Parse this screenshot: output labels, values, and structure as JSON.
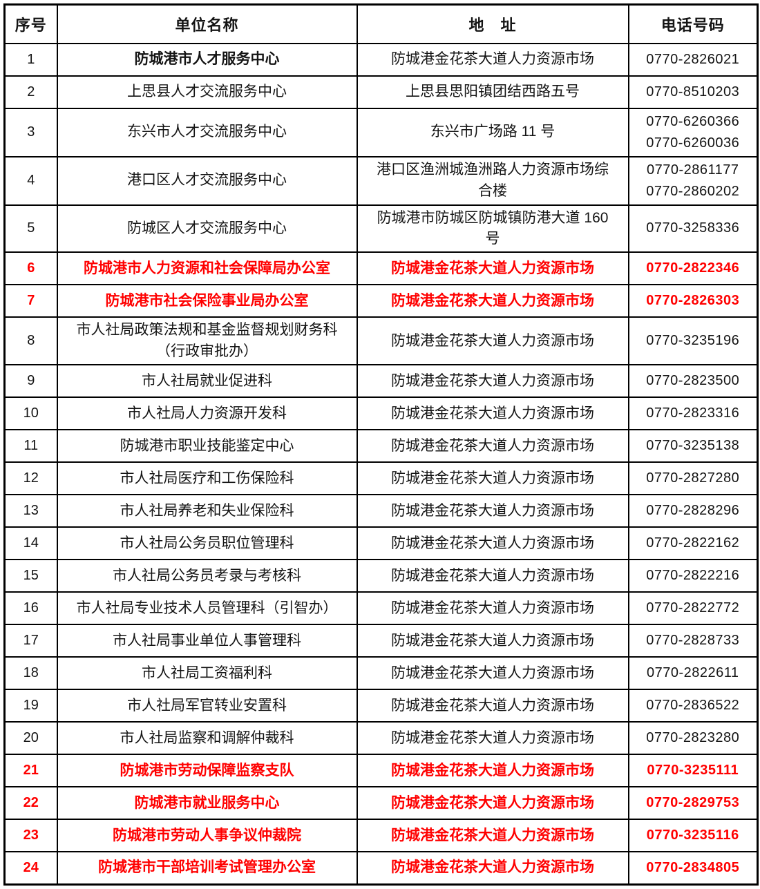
{
  "colors": {
    "highlight": "#FF0000",
    "text": "#141414",
    "border": "#000000"
  },
  "table": {
    "headers": [
      "序号",
      "单位名称",
      "地　址",
      "电话号码"
    ],
    "rows": [
      {
        "no": "1",
        "name": "防城港市人才服务中心",
        "name_bold": true,
        "address": "防城港金花茶大道人力资源市场",
        "phones": [
          "0770-2826021"
        ],
        "highlight": false
      },
      {
        "no": "2",
        "name": "上思县人才交流服务中心",
        "name_bold": false,
        "address": "上思县思阳镇团结西路五号",
        "phones": [
          "0770-8510203"
        ],
        "highlight": false
      },
      {
        "no": "3",
        "name": "东兴市人才交流服务中心",
        "name_bold": false,
        "address": "东兴市广场路 11 号",
        "phones": [
          "0770-6260366",
          "0770-6260036"
        ],
        "highlight": false
      },
      {
        "no": "4",
        "name": "港口区人才交流服务中心",
        "name_bold": false,
        "address": "港口区渔洲城渔洲路人力资源市场综\n合楼",
        "phones": [
          "0770-2861177",
          "0770-2860202"
        ],
        "highlight": false
      },
      {
        "no": "5",
        "name": "防城区人才交流服务中心",
        "name_bold": false,
        "address": "防城港市防城区防城镇防港大道 160\n号",
        "phones": [
          "0770-3258336"
        ],
        "highlight": false
      },
      {
        "no": "6",
        "name": "防城港市人力资源和社会保障局办公室",
        "name_bold": false,
        "address": "防城港金花茶大道人力资源市场",
        "phones": [
          "0770-2822346"
        ],
        "highlight": true
      },
      {
        "no": "7",
        "name": "防城港市社会保险事业局办公室",
        "name_bold": false,
        "address": "防城港金花茶大道人力资源市场",
        "phones": [
          "0770-2826303"
        ],
        "highlight": true
      },
      {
        "no": "8",
        "name": "市人社局政策法规和基金监督规划财务科\n（行政审批办）",
        "name_bold": false,
        "address": "防城港金花茶大道人力资源市场",
        "phones": [
          "0770-3235196"
        ],
        "highlight": false
      },
      {
        "no": "9",
        "name": "市人社局就业促进科",
        "name_bold": false,
        "address": "防城港金花茶大道人力资源市场",
        "phones": [
          "0770-2823500"
        ],
        "highlight": false
      },
      {
        "no": "10",
        "name": "市人社局人力资源开发科",
        "name_bold": false,
        "address": "防城港金花茶大道人力资源市场",
        "phones": [
          "0770-2823316"
        ],
        "highlight": false
      },
      {
        "no": "11",
        "name": "防城港市职业技能鉴定中心",
        "name_bold": false,
        "address": "防城港金花茶大道人力资源市场",
        "phones": [
          "0770-3235138"
        ],
        "highlight": false
      },
      {
        "no": "12",
        "name": "市人社局医疗和工伤保险科",
        "name_bold": false,
        "address": "防城港金花茶大道人力资源市场",
        "phones": [
          "0770-2827280"
        ],
        "highlight": false
      },
      {
        "no": "13",
        "name": "市人社局养老和失业保险科",
        "name_bold": false,
        "address": "防城港金花茶大道人力资源市场",
        "phones": [
          "0770-2828296"
        ],
        "highlight": false
      },
      {
        "no": "14",
        "name": "市人社局公务员职位管理科",
        "name_bold": false,
        "address": "防城港金花茶大道人力资源市场",
        "phones": [
          "0770-2822162"
        ],
        "highlight": false
      },
      {
        "no": "15",
        "name": "市人社局公务员考录与考核科",
        "name_bold": false,
        "address": "防城港金花茶大道人力资源市场",
        "phones": [
          "0770-2822216"
        ],
        "highlight": false
      },
      {
        "no": "16",
        "name": "市人社局专业技术人员管理科（引智办）",
        "name_bold": false,
        "address": "防城港金花茶大道人力资源市场",
        "phones": [
          "0770-2822772"
        ],
        "highlight": false
      },
      {
        "no": "17",
        "name": "市人社局事业单位人事管理科",
        "name_bold": false,
        "address": "防城港金花茶大道人力资源市场",
        "phones": [
          "0770-2828733"
        ],
        "highlight": false
      },
      {
        "no": "18",
        "name": "市人社局工资福利科",
        "name_bold": false,
        "address": "防城港金花茶大道人力资源市场",
        "phones": [
          "0770-2822611"
        ],
        "highlight": false
      },
      {
        "no": "19",
        "name": "市人社局军官转业安置科",
        "name_bold": false,
        "address": "防城港金花茶大道人力资源市场",
        "phones": [
          "0770-2836522"
        ],
        "highlight": false
      },
      {
        "no": "20",
        "name": "市人社局监察和调解仲裁科",
        "name_bold": false,
        "address": "防城港金花茶大道人力资源市场",
        "phones": [
          "0770-2823280"
        ],
        "highlight": false
      },
      {
        "no": "21",
        "name": "防城港市劳动保障监察支队",
        "name_bold": false,
        "address": "防城港金花茶大道人力资源市场",
        "phones": [
          "0770-3235111"
        ],
        "highlight": true
      },
      {
        "no": "22",
        "name": "防城港市就业服务中心",
        "name_bold": false,
        "address": "防城港金花茶大道人力资源市场",
        "phones": [
          "0770-2829753"
        ],
        "highlight": true
      },
      {
        "no": "23",
        "name": "防城港市劳动人事争议仲裁院",
        "name_bold": false,
        "address": "防城港金花茶大道人力资源市场",
        "phones": [
          "0770-3235116"
        ],
        "highlight": true
      },
      {
        "no": "24",
        "name": "防城港市干部培训考试管理办公室",
        "name_bold": false,
        "address": "防城港金花茶大道人力资源市场",
        "phones": [
          "0770-2834805"
        ],
        "highlight": true
      }
    ]
  }
}
